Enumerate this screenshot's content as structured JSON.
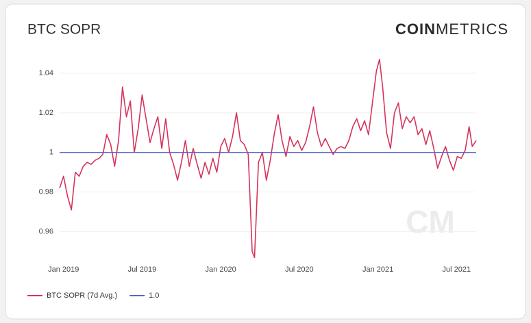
{
  "chart_data": {
    "type": "line",
    "title": "BTC SOPR",
    "logo": {
      "bold": "COIN",
      "light": "METRICS"
    },
    "watermark": "CM",
    "xlim": [
      2018.975,
      2021.625
    ],
    "ylim": [
      0.945,
      1.05
    ],
    "xticks": [
      {
        "value": 2019,
        "label": "Jan 2019"
      },
      {
        "value": 2019.5,
        "label": "Jul 2019"
      },
      {
        "value": 2020,
        "label": "Jan 2020"
      },
      {
        "value": 2020.5,
        "label": "Jul 2020"
      },
      {
        "value": 2021,
        "label": "Jan 2021"
      },
      {
        "value": 2021.5,
        "label": "Jul 2021"
      }
    ],
    "yticks": [
      0.96,
      0.98,
      1,
      1.02,
      1.04
    ],
    "grid": true,
    "legend": "bottom",
    "series": [
      {
        "name": "BTC SOPR (7d Avg.)",
        "color": "#d6335a",
        "x": [
          2018.975,
          2019.0,
          2019.025,
          2019.05,
          2019.075,
          2019.1,
          2019.125,
          2019.15,
          2019.175,
          2019.2,
          2019.225,
          2019.25,
          2019.275,
          2019.3,
          2019.325,
          2019.35,
          2019.375,
          2019.4,
          2019.425,
          2019.45,
          2019.475,
          2019.5,
          2019.525,
          2019.55,
          2019.575,
          2019.6,
          2019.625,
          2019.65,
          2019.675,
          2019.7,
          2019.725,
          2019.75,
          2019.775,
          2019.8,
          2019.825,
          2019.85,
          2019.875,
          2019.9,
          2019.925,
          2019.95,
          2019.975,
          2020.0,
          2020.025,
          2020.05,
          2020.075,
          2020.1,
          2020.125,
          2020.15,
          2020.175,
          2020.2,
          2020.215,
          2020.24,
          2020.265,
          2020.29,
          2020.315,
          2020.34,
          2020.365,
          2020.39,
          2020.415,
          2020.44,
          2020.465,
          2020.49,
          2020.515,
          2020.54,
          2020.565,
          2020.59,
          2020.615,
          2020.64,
          2020.665,
          2020.69,
          2020.715,
          2020.74,
          2020.765,
          2020.79,
          2020.815,
          2020.84,
          2020.865,
          2020.89,
          2020.915,
          2020.94,
          2020.965,
          2020.99,
          2021.01,
          2021.03,
          2021.055,
          2021.08,
          2021.105,
          2021.13,
          2021.155,
          2021.18,
          2021.205,
          2021.23,
          2021.255,
          2021.28,
          2021.305,
          2021.33,
          2021.355,
          2021.38,
          2021.405,
          2021.43,
          2021.455,
          2021.48,
          2021.505,
          2021.53,
          2021.555,
          2021.58,
          2021.6,
          2021.625
        ],
        "values": [
          0.982,
          0.988,
          0.978,
          0.971,
          0.99,
          0.988,
          0.993,
          0.995,
          0.994,
          0.996,
          0.997,
          0.999,
          1.009,
          1.004,
          0.993,
          1.006,
          1.033,
          1.018,
          1.026,
          1.0,
          1.012,
          1.029,
          1.017,
          1.005,
          1.012,
          1.018,
          1.002,
          1.017,
          1.0,
          0.994,
          0.986,
          0.995,
          1.006,
          0.993,
          1.002,
          0.994,
          0.987,
          0.995,
          0.989,
          0.997,
          0.99,
          1.003,
          1.007,
          1.0,
          1.008,
          1.02,
          1.006,
          1.004,
          0.999,
          0.95,
          0.947,
          0.995,
          1.0,
          0.986,
          0.996,
          1.009,
          1.019,
          1.006,
          0.998,
          1.008,
          1.003,
          1.006,
          1.001,
          1.005,
          1.013,
          1.023,
          1.01,
          1.003,
          1.007,
          1.003,
          0.999,
          1.002,
          1.003,
          1.002,
          1.006,
          1.013,
          1.017,
          1.011,
          1.016,
          1.009,
          1.025,
          1.041,
          1.047,
          1.033,
          1.01,
          1.002,
          1.02,
          1.025,
          1.012,
          1.018,
          1.015,
          1.018,
          1.009,
          1.012,
          1.004,
          1.011,
          1.002,
          0.992,
          0.998,
          1.003,
          0.996,
          0.991,
          0.998,
          0.997,
          1.001,
          1.013,
          1.003,
          1.006
        ]
      },
      {
        "name": "1.0",
        "color": "#5567c9",
        "x": [
          2018.975,
          2021.625
        ],
        "values": [
          1,
          1
        ]
      }
    ]
  }
}
